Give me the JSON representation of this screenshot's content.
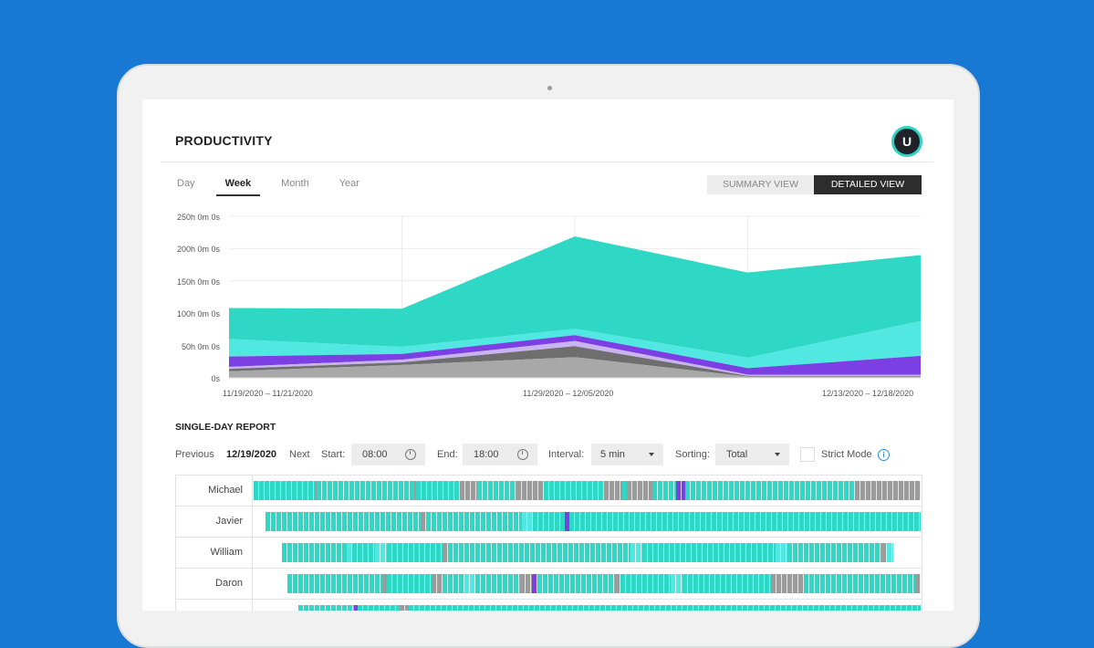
{
  "header": {
    "title": "PRODUCTIVITY",
    "avatar_letter": "U"
  },
  "tabs": [
    {
      "label": "Day"
    },
    {
      "label": "Week",
      "active": true
    },
    {
      "label": "Month"
    },
    {
      "label": "Year"
    }
  ],
  "view_toggle": {
    "summary": "SUMMARY VIEW",
    "detailed": "DETAILED VIEW",
    "active": "detailed"
  },
  "colors": {
    "teal": "#2ed8c5",
    "light_teal": "#50e8e0",
    "purple": "#7b3fe4",
    "lavender": "#c9b4f2",
    "dark_gray": "#6e6e6e",
    "gray": "#a8a8a8",
    "idle": "#9b9b9b"
  },
  "chart_data": {
    "type": "area",
    "y_ticks": [
      "250h 0m 0s",
      "200h 0m 0s",
      "150h 0m 0s",
      "100h 0m 0s",
      "50h 0m 0s",
      "0s"
    ],
    "x_tick_labels": [
      "11/19/2020 – 11/21/2020",
      "11/29/2020 – 12/05/2020",
      "12/13/2020 – 12/18/2020"
    ],
    "ylim": [
      0,
      250
    ],
    "x_points": 5,
    "series_stacked_hours": [
      {
        "color": "#a8a8a8",
        "values": [
          10,
          20,
          32,
          2,
          2
        ]
      },
      {
        "color": "#6e6e6e",
        "values": [
          4,
          4,
          17,
          1,
          1
        ]
      },
      {
        "color": "#c9b4f2",
        "values": [
          3,
          4,
          8,
          2,
          2
        ]
      },
      {
        "color": "#7b3fe4",
        "values": [
          16,
          9,
          9,
          10,
          29
        ]
      },
      {
        "color": "#50e8e0",
        "values": [
          27,
          11,
          10,
          16,
          54
        ]
      },
      {
        "color": "#2ed8c5",
        "values": [
          48,
          59,
          143,
          132,
          102
        ]
      }
    ],
    "grid": true
  },
  "report": {
    "title": "SINGLE-DAY REPORT",
    "previous": "Previous",
    "date": "12/19/2020",
    "next": "Next",
    "start_label": "Start:",
    "start_value": "08:00",
    "end_label": "End:",
    "end_value": "18:00",
    "interval_label": "Interval:",
    "interval_value": "5 min",
    "sorting_label": "Sorting:",
    "sorting_value": "Total",
    "strict_label": "Strict Mode",
    "info_icon": "info-icon"
  },
  "rows": [
    {
      "name": "Michael",
      "segments": [
        [
          0,
          67,
          "teal"
        ],
        [
          67,
          69,
          "idle"
        ],
        [
          69,
          176,
          "teal"
        ],
        [
          176,
          178,
          "idle"
        ],
        [
          178,
          226,
          "teal"
        ],
        [
          226,
          245,
          "idle"
        ],
        [
          245,
          288,
          "teal"
        ],
        [
          288,
          318,
          "idle"
        ],
        [
          318,
          384,
          "teal"
        ],
        [
          384,
          404,
          "idle"
        ],
        [
          404,
          409,
          "teal"
        ],
        [
          409,
          437,
          "idle"
        ],
        [
          437,
          463,
          "teal"
        ],
        [
          463,
          473,
          "purple"
        ],
        [
          473,
          659,
          "teal"
        ],
        [
          659,
          731,
          "idle"
        ]
      ]
    },
    {
      "name": "Javier",
      "segments": [
        [
          13,
          183,
          "teal"
        ],
        [
          183,
          189,
          "idle"
        ],
        [
          189,
          294,
          "teal"
        ],
        [
          294,
          306,
          "light"
        ],
        [
          306,
          341,
          "teal"
        ],
        [
          341,
          346,
          "purple"
        ],
        [
          346,
          731,
          "teal"
        ]
      ]
    },
    {
      "name": "William",
      "segments": [
        [
          31,
          102,
          "teal"
        ],
        [
          102,
          108,
          "light"
        ],
        [
          108,
          133,
          "teal"
        ],
        [
          133,
          146,
          "light"
        ],
        [
          146,
          207,
          "teal"
        ],
        [
          207,
          213,
          "idle"
        ],
        [
          213,
          413,
          "teal"
        ],
        [
          413,
          426,
          "light"
        ],
        [
          426,
          572,
          "teal"
        ],
        [
          572,
          585,
          "light"
        ],
        [
          585,
          688,
          "teal"
        ],
        [
          688,
          694,
          "idle"
        ],
        [
          694,
          701,
          "light"
        ]
      ]
    },
    {
      "name": "Daron",
      "segments": [
        [
          37,
          141,
          "teal"
        ],
        [
          141,
          146,
          "idle"
        ],
        [
          146,
          195,
          "teal"
        ],
        [
          195,
          207,
          "idle"
        ],
        [
          207,
          231,
          "teal"
        ],
        [
          231,
          243,
          "light"
        ],
        [
          243,
          292,
          "teal"
        ],
        [
          292,
          305,
          "idle"
        ],
        [
          305,
          311,
          "purple"
        ],
        [
          311,
          396,
          "teal"
        ],
        [
          396,
          402,
          "idle"
        ],
        [
          402,
          457,
          "teal"
        ],
        [
          457,
          470,
          "light"
        ],
        [
          470,
          567,
          "teal"
        ],
        [
          567,
          603,
          "idle"
        ],
        [
          603,
          725,
          "teal"
        ],
        [
          725,
          731,
          "idle"
        ]
      ]
    },
    {
      "name": "",
      "segments": [
        [
          49,
          110,
          "teal"
        ],
        [
          110,
          114,
          "purple"
        ],
        [
          114,
          160,
          "teal"
        ],
        [
          160,
          170,
          "idle"
        ],
        [
          170,
          731,
          "teal"
        ]
      ]
    }
  ]
}
